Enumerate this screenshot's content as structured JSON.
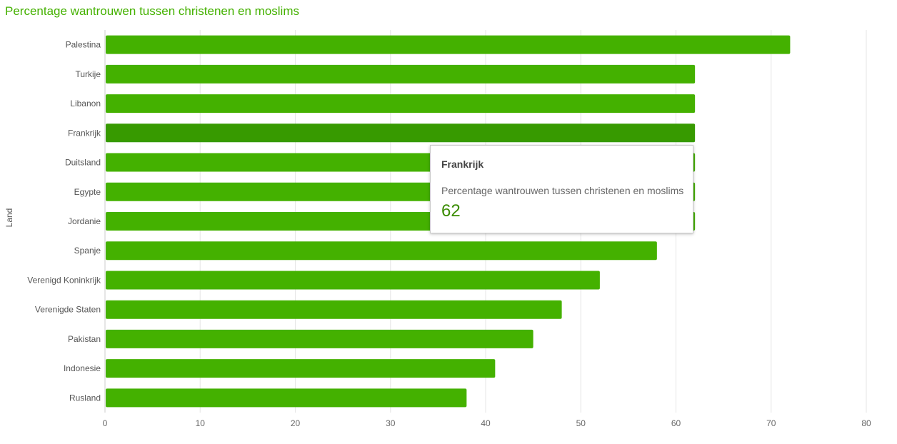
{
  "chart_data": {
    "type": "bar",
    "orientation": "horizontal",
    "title": "Percentage wantrouwen tussen christenen en moslims",
    "ylabel": "Land",
    "xlabel": "",
    "categories": [
      "Palestina",
      "Turkije",
      "Libanon",
      "Frankrijk",
      "Duitsland",
      "Egypte",
      "Jordanie",
      "Spanje",
      "Verenigd Koninkrijk",
      "Verenigde Staten",
      "Pakistan",
      "Indonesie",
      "Rusland"
    ],
    "values": [
      72,
      62,
      62,
      62,
      62,
      62,
      62,
      58,
      52,
      48,
      45,
      41,
      38
    ],
    "xlim": [
      0,
      80
    ],
    "xticks": [
      0,
      10,
      20,
      30,
      40,
      50,
      60,
      70,
      80
    ],
    "grid": true,
    "highlighted": "Frankrijk",
    "colors": {
      "bar": "#44b100",
      "highlight": "#379a00",
      "title": "#44b100"
    }
  },
  "tooltip": {
    "category": "Frankrijk",
    "series": "Percentage wantrouwen tussen christenen en moslims",
    "value": "62"
  }
}
